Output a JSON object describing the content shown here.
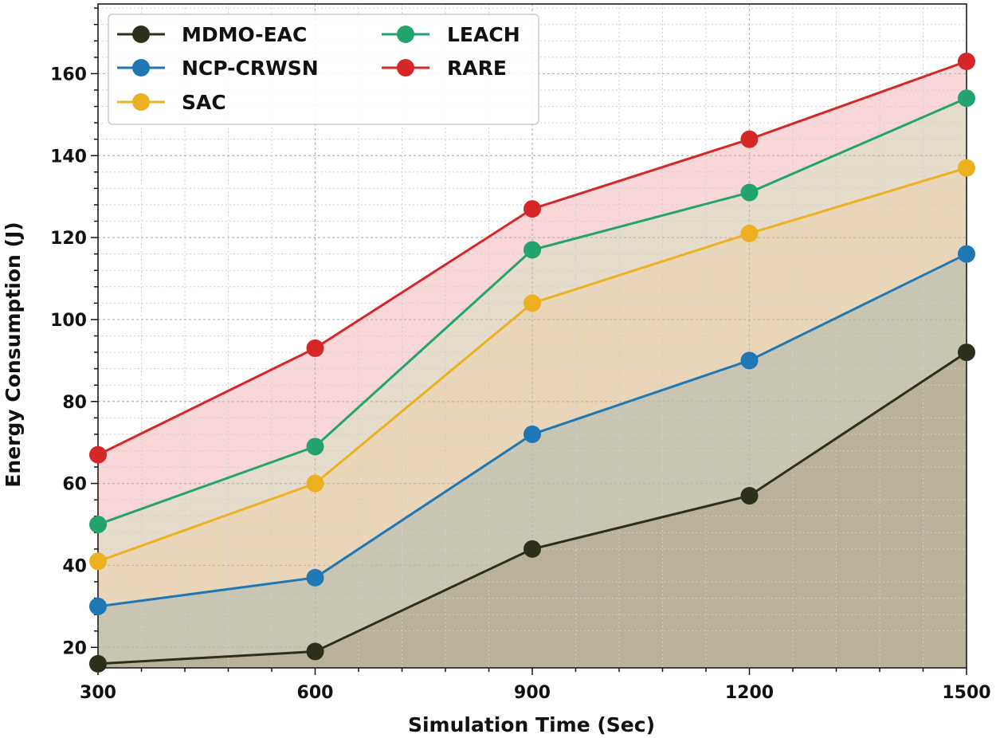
{
  "chart_data": {
    "type": "line",
    "title": "",
    "xlabel": "Simulation Time (Sec)",
    "ylabel": "Energy Consumption (J)",
    "x": [
      300,
      600,
      900,
      1200,
      1500
    ],
    "xlim": [
      300,
      1500
    ],
    "ylim": [
      15,
      177
    ],
    "xticks": [
      "300",
      "600",
      "900",
      "1200",
      "1500"
    ],
    "yticks": [
      "20",
      "40",
      "60",
      "80",
      "100",
      "120",
      "140",
      "160"
    ],
    "grid": true,
    "legend_position": "top-left",
    "series": [
      {
        "name": "MDMO-EAC",
        "color": "#2b2f1c",
        "fill": "#b9b199",
        "values": [
          16,
          19,
          44,
          57,
          92
        ]
      },
      {
        "name": "NCP-CRWSN",
        "color": "#1f77b4",
        "fill": "#c8c5b2",
        "values": [
          30,
          37,
          72,
          90,
          116
        ]
      },
      {
        "name": "SAC",
        "color": "#edb021",
        "fill": "#e9d6b8",
        "values": [
          41,
          60,
          104,
          121,
          137
        ]
      },
      {
        "name": "LEACH",
        "color": "#23a36e",
        "fill": "#e6dccb",
        "values": [
          50,
          69,
          117,
          131,
          154
        ]
      },
      {
        "name": "RARE",
        "color": "#d62728",
        "fill": "#f9d7d9",
        "values": [
          67,
          93,
          127,
          144,
          163
        ]
      }
    ]
  }
}
